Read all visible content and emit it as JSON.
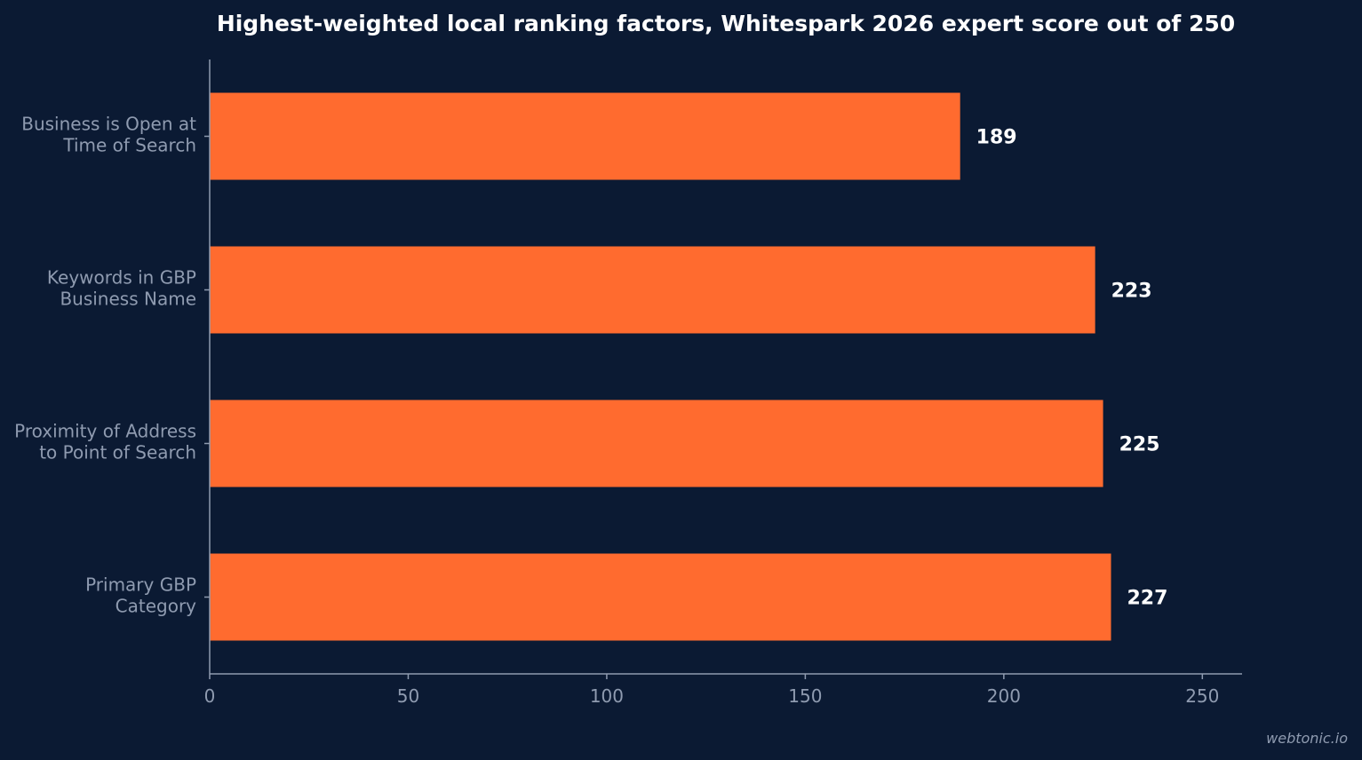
{
  "chart_data": {
    "type": "bar",
    "orientation": "horizontal",
    "title": "Highest-weighted local ranking factors, Whitespark 2026 expert score out of 250",
    "categories": [
      [
        "Business is Open at",
        "Time of Search"
      ],
      [
        "Keywords in GBP",
        "Business Name"
      ],
      [
        "Proximity of Address",
        "to Point of Search"
      ],
      [
        "Primary GBP",
        "Category"
      ]
    ],
    "values": [
      189,
      223,
      225,
      227
    ],
    "value_labels": [
      "189",
      "223",
      "225",
      "227"
    ],
    "xlim": [
      0,
      260
    ],
    "xticks": [
      0,
      50,
      100,
      150,
      200,
      250
    ],
    "xtick_labels": [
      "0",
      "50",
      "100",
      "150",
      "200",
      "250"
    ],
    "xlabel": "",
    "ylabel": "",
    "grid": false,
    "legend": "none"
  },
  "colors": {
    "background": "#0b1a33",
    "bar": "#ff6b2f",
    "axis": "#8f9bb0",
    "label": "#8f9bb0",
    "value": "#ffffff",
    "title": "#ffffff"
  },
  "watermark": "webtonic.io"
}
